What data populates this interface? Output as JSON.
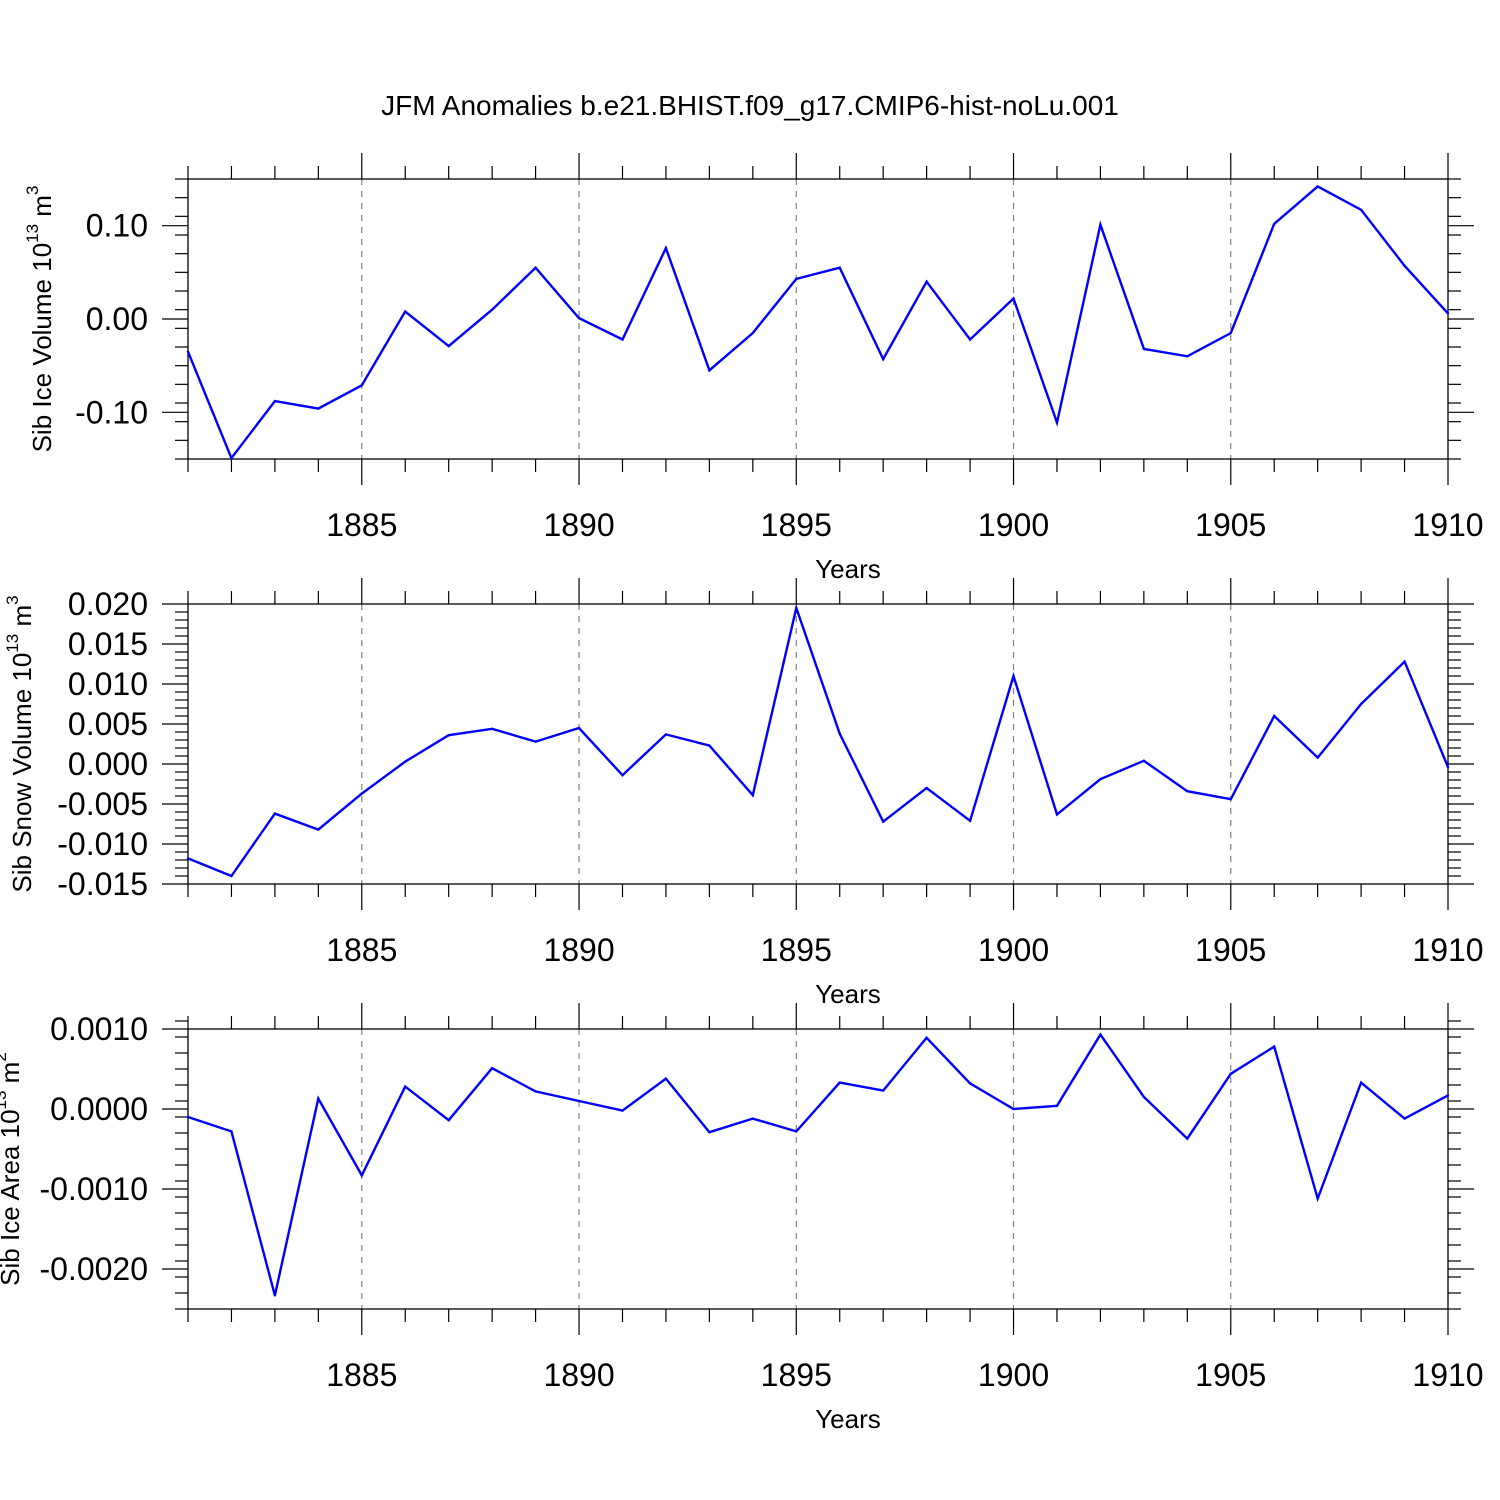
{
  "page_title": "JFM Anomalies b.e21.BHIST.f09_g17.CMIP6-hist-noLu.001",
  "line_color": "#0000ff",
  "chart_data": [
    {
      "type": "line",
      "name": "sib-ice-volume",
      "title": "JFM Anomalies b.e21.BHIST.f09_g17.CMIP6-hist-noLu.001",
      "xlabel": "Years",
      "ylabel_base": "Sib Ice Volume 10",
      "ylabel_exp": "13",
      "ylabel_unit": " m",
      "ylabel_unit_exp": "3",
      "xlim": [
        1881,
        1910
      ],
      "ylim": [
        -0.15,
        0.15
      ],
      "x_ticks": [
        1885,
        1890,
        1895,
        1900,
        1905,
        1910
      ],
      "x_tick_labels": [
        "1885",
        "1890",
        "1895",
        "1900",
        "1905",
        "1910"
      ],
      "y_ticks": [
        -0.1,
        0.0,
        0.1
      ],
      "y_tick_labels": [
        "-0.10",
        "0.00",
        "0.10"
      ],
      "y_minor_step": 0.02,
      "grid": "vertical dashed at major x ticks",
      "x": [
        1881,
        1882,
        1883,
        1884,
        1885,
        1886,
        1887,
        1888,
        1889,
        1890,
        1891,
        1892,
        1893,
        1894,
        1895,
        1896,
        1897,
        1898,
        1899,
        1900,
        1901,
        1902,
        1903,
        1904,
        1905,
        1906,
        1907,
        1908,
        1909,
        1910
      ],
      "values": [
        -0.035,
        -0.149,
        -0.088,
        -0.096,
        -0.071,
        0.008,
        -0.029,
        0.01,
        0.055,
        0.001,
        -0.022,
        0.076,
        -0.055,
        -0.015,
        0.043,
        0.055,
        -0.043,
        0.04,
        -0.022,
        0.022,
        -0.111,
        0.101,
        -0.032,
        -0.04,
        -0.015,
        0.102,
        0.142,
        0.117,
        0.057,
        0.006
      ]
    },
    {
      "type": "line",
      "name": "sib-snow-volume",
      "xlabel": "Years",
      "ylabel_base": "Sib Snow Volume 10",
      "ylabel_exp": "13",
      "ylabel_unit": " m",
      "ylabel_unit_exp": "3",
      "xlim": [
        1881,
        1910
      ],
      "ylim": [
        -0.015,
        0.02
      ],
      "x_ticks": [
        1885,
        1890,
        1895,
        1900,
        1905,
        1910
      ],
      "x_tick_labels": [
        "1885",
        "1890",
        "1895",
        "1900",
        "1905",
        "1910"
      ],
      "y_ticks": [
        -0.015,
        -0.01,
        -0.005,
        0.0,
        0.005,
        0.01,
        0.015,
        0.02
      ],
      "y_tick_labels": [
        "-0.015",
        "-0.010",
        "-0.005",
        "0.000",
        "0.005",
        "0.010",
        "0.015",
        "0.020"
      ],
      "y_minor_step": 0.001,
      "grid": "vertical dashed at major x ticks",
      "x": [
        1881,
        1882,
        1883,
        1884,
        1885,
        1886,
        1887,
        1888,
        1889,
        1890,
        1891,
        1892,
        1893,
        1894,
        1895,
        1896,
        1897,
        1898,
        1899,
        1900,
        1901,
        1902,
        1903,
        1904,
        1905,
        1906,
        1907,
        1908,
        1909,
        1910
      ],
      "values": [
        -0.0118,
        -0.014,
        -0.0062,
        -0.0082,
        -0.0037,
        0.0003,
        0.0036,
        0.0044,
        0.0028,
        0.0045,
        -0.0014,
        0.0037,
        0.0023,
        -0.0039,
        0.0195,
        0.0038,
        -0.0072,
        -0.003,
        -0.0071,
        0.011,
        -0.0063,
        -0.0019,
        0.0004,
        -0.0034,
        -0.0044,
        0.006,
        0.0008,
        0.0075,
        0.0128,
        -0.0004
      ]
    },
    {
      "type": "line",
      "name": "sib-ice-area",
      "xlabel": "Years",
      "ylabel_base": "Sib Ice Area 10",
      "ylabel_exp": "13",
      "ylabel_unit": " m",
      "ylabel_unit_exp": "2",
      "xlim": [
        1881,
        1910
      ],
      "ylim": [
        -0.0025,
        0.001
      ],
      "x_ticks": [
        1885,
        1890,
        1895,
        1900,
        1905,
        1910
      ],
      "x_tick_labels": [
        "1885",
        "1890",
        "1895",
        "1900",
        "1905",
        "1910"
      ],
      "y_ticks": [
        -0.002,
        -0.001,
        0.0,
        0.001
      ],
      "y_tick_labels": [
        "-0.0020",
        "-0.0010",
        "0.0000",
        "0.0010"
      ],
      "y_minor_step": 0.0002,
      "grid": "vertical dashed at major x ticks",
      "x": [
        1881,
        1882,
        1883,
        1884,
        1885,
        1886,
        1887,
        1888,
        1889,
        1890,
        1891,
        1892,
        1893,
        1894,
        1895,
        1896,
        1897,
        1898,
        1899,
        1900,
        1901,
        1902,
        1903,
        1904,
        1905,
        1906,
        1907,
        1908,
        1909,
        1910
      ],
      "values": [
        -0.0001,
        -0.00028,
        -0.00233,
        0.00013,
        -0.00083,
        0.00028,
        -0.00014,
        0.00051,
        0.00022,
        0.0001,
        -2e-05,
        0.00038,
        -0.00029,
        -0.00012,
        -0.00028,
        0.00033,
        0.00023,
        0.00089,
        0.00032,
        0.0,
        4e-05,
        0.00093,
        0.00015,
        -0.00037,
        0.00044,
        0.00078,
        -0.00112,
        0.00033,
        -0.00012,
        0.00017
      ]
    }
  ]
}
